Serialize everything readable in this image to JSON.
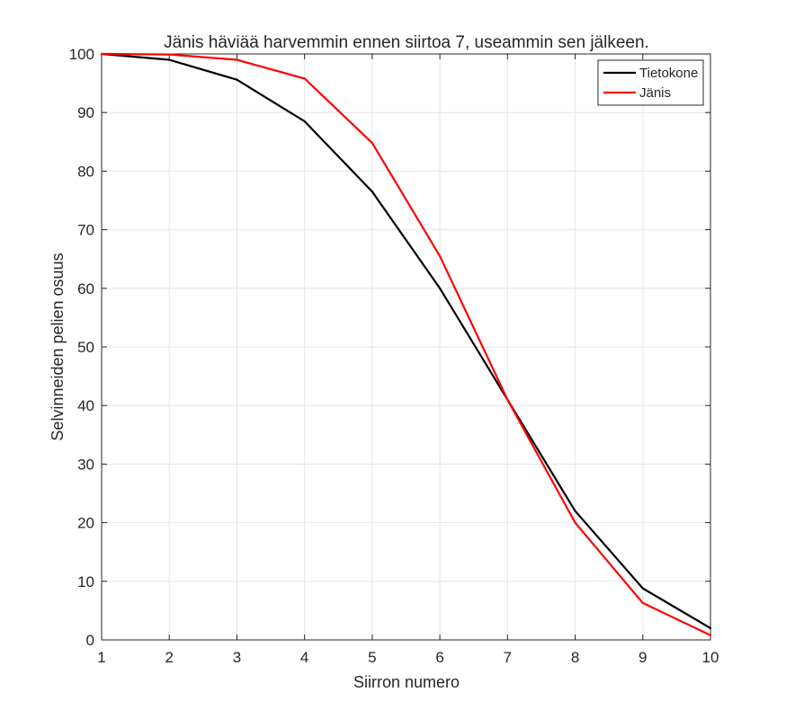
{
  "chart_data": {
    "type": "line",
    "title": "Jänis häviää harvemmin ennen siirtoa 7, useammin sen jälkeen.",
    "xlabel": "Siirron numero",
    "ylabel": "Selvinneiden pelien osuus",
    "x": [
      1,
      2,
      3,
      4,
      5,
      6,
      7,
      8,
      9,
      10
    ],
    "xlim": [
      1,
      10
    ],
    "ylim": [
      0,
      100
    ],
    "xticks": [
      "1",
      "2",
      "3",
      "4",
      "5",
      "6",
      "7",
      "8",
      "9",
      "10"
    ],
    "yticks": [
      "0",
      "10",
      "20",
      "30",
      "40",
      "50",
      "60",
      "70",
      "80",
      "90",
      "100"
    ],
    "grid": true,
    "legend_position": "top-right",
    "series": [
      {
        "name": "Tietokone",
        "color": "#000000",
        "values": [
          100,
          99,
          95.6,
          88.5,
          76.5,
          60,
          41,
          22,
          8.8,
          2
        ]
      },
      {
        "name": "Jänis",
        "color": "#ff0000",
        "values": [
          100,
          99.9,
          99,
          95.8,
          84.8,
          65.5,
          41,
          20,
          6.3,
          0.8
        ]
      }
    ]
  }
}
